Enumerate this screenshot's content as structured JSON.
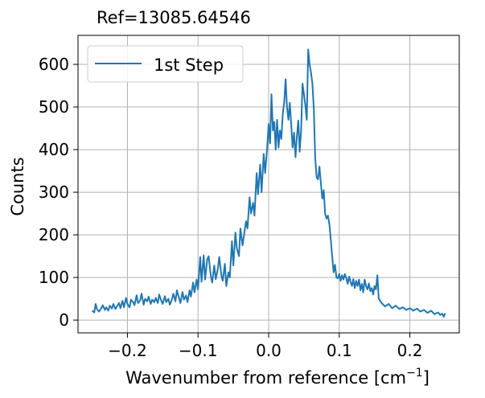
{
  "chart_data": {
    "type": "line",
    "title": "Ref=13085.64546",
    "xlabel": "Wavenumber from reference",
    "xlabel_unit_base": "cm",
    "xlabel_unit_exp": "−1",
    "ylabel": "Counts",
    "xlim": [
      -0.27,
      0.27
    ],
    "ylim": [
      -30,
      668
    ],
    "xticks": [
      -0.2,
      -0.1,
      0.0,
      0.1,
      0.2
    ],
    "xtick_labels": [
      "−0.2",
      "−0.1",
      "0.0",
      "0.1",
      "0.2"
    ],
    "yticks": [
      0,
      100,
      200,
      300,
      400,
      500,
      600
    ],
    "ytick_labels": [
      "0",
      "100",
      "200",
      "300",
      "400",
      "500",
      "600"
    ],
    "grid": true,
    "legend_position": "top-left",
    "series": [
      {
        "name": "1st Step",
        "color": "#1f77b4",
        "points": [
          [
            -0.25,
            22
          ],
          [
            -0.247,
            18
          ],
          [
            -0.245,
            38
          ],
          [
            -0.243,
            25
          ],
          [
            -0.24,
            20
          ],
          [
            -0.237,
            28
          ],
          [
            -0.235,
            35
          ],
          [
            -0.232,
            24
          ],
          [
            -0.23,
            30
          ],
          [
            -0.227,
            22
          ],
          [
            -0.225,
            34
          ],
          [
            -0.222,
            27
          ],
          [
            -0.22,
            38
          ],
          [
            -0.217,
            26
          ],
          [
            -0.215,
            32
          ],
          [
            -0.212,
            40
          ],
          [
            -0.21,
            28
          ],
          [
            -0.207,
            45
          ],
          [
            -0.205,
            30
          ],
          [
            -0.202,
            52
          ],
          [
            -0.2,
            38
          ],
          [
            -0.197,
            30
          ],
          [
            -0.195,
            48
          ],
          [
            -0.192,
            42
          ],
          [
            -0.19,
            35
          ],
          [
            -0.187,
            58
          ],
          [
            -0.185,
            40
          ],
          [
            -0.182,
            46
          ],
          [
            -0.18,
            62
          ],
          [
            -0.177,
            36
          ],
          [
            -0.175,
            50
          ],
          [
            -0.172,
            44
          ],
          [
            -0.17,
            55
          ],
          [
            -0.167,
            38
          ],
          [
            -0.165,
            48
          ],
          [
            -0.162,
            42
          ],
          [
            -0.16,
            52
          ],
          [
            -0.157,
            40
          ],
          [
            -0.155,
            60
          ],
          [
            -0.152,
            45
          ],
          [
            -0.15,
            38
          ],
          [
            -0.147,
            56
          ],
          [
            -0.145,
            42
          ],
          [
            -0.142,
            50
          ],
          [
            -0.14,
            36
          ],
          [
            -0.137,
            48
          ],
          [
            -0.135,
            62
          ],
          [
            -0.132,
            44
          ],
          [
            -0.13,
            70
          ],
          [
            -0.127,
            52
          ],
          [
            -0.125,
            40
          ],
          [
            -0.122,
            66
          ],
          [
            -0.12,
            48
          ],
          [
            -0.117,
            58
          ],
          [
            -0.115,
            42
          ],
          [
            -0.112,
            70
          ],
          [
            -0.11,
            55
          ],
          [
            -0.107,
            88
          ],
          [
            -0.105,
            65
          ],
          [
            -0.102,
            95
          ],
          [
            -0.1,
            72
          ],
          [
            -0.097,
            148
          ],
          [
            -0.095,
            90
          ],
          [
            -0.092,
            152
          ],
          [
            -0.09,
            95
          ],
          [
            -0.087,
            142
          ],
          [
            -0.085,
            150
          ],
          [
            -0.082,
            105
          ],
          [
            -0.08,
            88
          ],
          [
            -0.077,
            128
          ],
          [
            -0.075,
            96
          ],
          [
            -0.072,
            120
          ],
          [
            -0.07,
            148
          ],
          [
            -0.067,
            105
          ],
          [
            -0.065,
            92
          ],
          [
            -0.062,
            132
          ],
          [
            -0.06,
            80
          ],
          [
            -0.057,
            112
          ],
          [
            -0.055,
            100
          ],
          [
            -0.052,
            185
          ],
          [
            -0.05,
            128
          ],
          [
            -0.047,
            205
          ],
          [
            -0.045,
            168
          ],
          [
            -0.042,
            150
          ],
          [
            -0.04,
            215
          ],
          [
            -0.037,
            175
          ],
          [
            -0.035,
            198
          ],
          [
            -0.032,
            232
          ],
          [
            -0.03,
            215
          ],
          [
            -0.027,
            288
          ],
          [
            -0.025,
            250
          ],
          [
            -0.022,
            275
          ],
          [
            -0.02,
            245
          ],
          [
            -0.017,
            345
          ],
          [
            -0.015,
            295
          ],
          [
            -0.012,
            365
          ],
          [
            -0.01,
            300
          ],
          [
            -0.007,
            390
          ],
          [
            -0.005,
            345
          ],
          [
            -0.002,
            405
          ],
          [
            0.0,
            460
          ],
          [
            0.002,
            415
          ],
          [
            0.004,
            530
          ],
          [
            0.006,
            445
          ],
          [
            0.008,
            465
          ],
          [
            0.01,
            400
          ],
          [
            0.012,
            470
          ],
          [
            0.014,
            405
          ],
          [
            0.016,
            445
          ],
          [
            0.018,
            425
          ],
          [
            0.02,
            485
          ],
          [
            0.022,
            510
          ],
          [
            0.024,
            565
          ],
          [
            0.026,
            500
          ],
          [
            0.028,
            470
          ],
          [
            0.03,
            510
          ],
          [
            0.032,
            458
          ],
          [
            0.034,
            405
          ],
          [
            0.036,
            440
          ],
          [
            0.038,
            382
          ],
          [
            0.04,
            430
          ],
          [
            0.042,
            468
          ],
          [
            0.044,
            395
          ],
          [
            0.046,
            445
          ],
          [
            0.048,
            555
          ],
          [
            0.05,
            530
          ],
          [
            0.052,
            505
          ],
          [
            0.054,
            470
          ],
          [
            0.056,
            635
          ],
          [
            0.058,
            600
          ],
          [
            0.06,
            580
          ],
          [
            0.062,
            555
          ],
          [
            0.064,
            495
          ],
          [
            0.066,
            380
          ],
          [
            0.068,
            335
          ],
          [
            0.07,
            330
          ],
          [
            0.072,
            360
          ],
          [
            0.074,
            320
          ],
          [
            0.076,
            285
          ],
          [
            0.078,
            305
          ],
          [
            0.08,
            250
          ],
          [
            0.082,
            238
          ],
          [
            0.084,
            245
          ],
          [
            0.086,
            225
          ],
          [
            0.088,
            190
          ],
          [
            0.09,
            150
          ],
          [
            0.092,
            112
          ],
          [
            0.094,
            130
          ],
          [
            0.096,
            100
          ],
          [
            0.098,
            98
          ],
          [
            0.1,
            108
          ],
          [
            0.102,
            92
          ],
          [
            0.104,
            105
          ],
          [
            0.106,
            95
          ],
          [
            0.108,
            108
          ],
          [
            0.11,
            98
          ],
          [
            0.112,
            85
          ],
          [
            0.114,
            102
          ],
          [
            0.116,
            90
          ],
          [
            0.118,
            80
          ],
          [
            0.12,
            96
          ],
          [
            0.122,
            75
          ],
          [
            0.124,
            92
          ],
          [
            0.126,
            80
          ],
          [
            0.128,
            95
          ],
          [
            0.13,
            70
          ],
          [
            0.132,
            85
          ],
          [
            0.134,
            65
          ],
          [
            0.136,
            95
          ],
          [
            0.138,
            80
          ],
          [
            0.14,
            72
          ],
          [
            0.142,
            86
          ],
          [
            0.144,
            68
          ],
          [
            0.146,
            75
          ],
          [
            0.148,
            60
          ],
          [
            0.15,
            80
          ],
          [
            0.152,
            72
          ],
          [
            0.154,
            105
          ],
          [
            0.156,
            50
          ],
          [
            0.158,
            45
          ],
          [
            0.16,
            40
          ],
          [
            0.165,
            32
          ],
          [
            0.17,
            38
          ],
          [
            0.175,
            28
          ],
          [
            0.18,
            34
          ],
          [
            0.185,
            26
          ],
          [
            0.19,
            30
          ],
          [
            0.195,
            24
          ],
          [
            0.2,
            28
          ],
          [
            0.205,
            22
          ],
          [
            0.21,
            27
          ],
          [
            0.215,
            20
          ],
          [
            0.22,
            24
          ],
          [
            0.225,
            17
          ],
          [
            0.23,
            22
          ],
          [
            0.235,
            14
          ],
          [
            0.24,
            18
          ],
          [
            0.243,
            12
          ],
          [
            0.246,
            15
          ],
          [
            0.248,
            8
          ],
          [
            0.25,
            16
          ]
        ]
      }
    ]
  }
}
